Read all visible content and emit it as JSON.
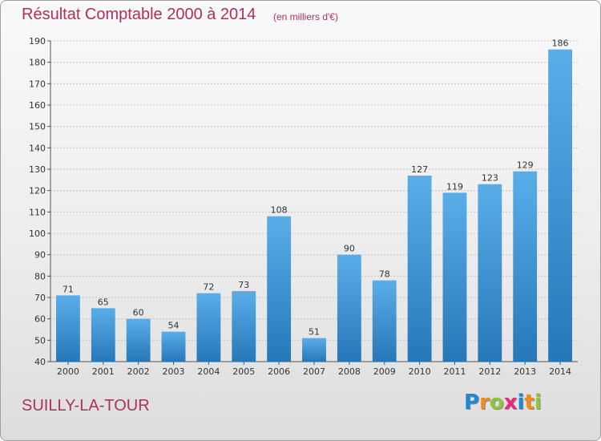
{
  "title": "Résultat Comptable 2000 à 2014",
  "subtitle": "(en milliers d'€)",
  "commune": "SUILLY-LA-TOUR",
  "logo": {
    "text": "Proxiti",
    "letters": [
      "P",
      "r",
      "o",
      "x",
      "i",
      "t",
      "i"
    ],
    "colors": [
      "#1e88d8",
      "#f08a1c",
      "#8cc63f",
      "#e62a7a",
      "#1e88d8",
      "#f08a1c",
      "#8cc63f"
    ]
  },
  "chart_data": {
    "type": "bar",
    "categories": [
      "2000",
      "2001",
      "2002",
      "2003",
      "2004",
      "2005",
      "2006",
      "2007",
      "2008",
      "2009",
      "2010",
      "2011",
      "2012",
      "2013",
      "2014"
    ],
    "values": [
      71,
      65,
      60,
      54,
      72,
      73,
      108,
      51,
      90,
      78,
      127,
      119,
      123,
      129,
      186
    ],
    "title": "Résultat Comptable 2000 à 2014",
    "xlabel": "",
    "ylabel": "",
    "ylim": [
      40,
      190
    ],
    "yticks": [
      40,
      50,
      60,
      70,
      80,
      90,
      100,
      110,
      120,
      130,
      140,
      150,
      160,
      170,
      180,
      190
    ],
    "grid": true,
    "bar_color_top": "#5aaee8",
    "bar_color_bottom": "#2677b8"
  }
}
